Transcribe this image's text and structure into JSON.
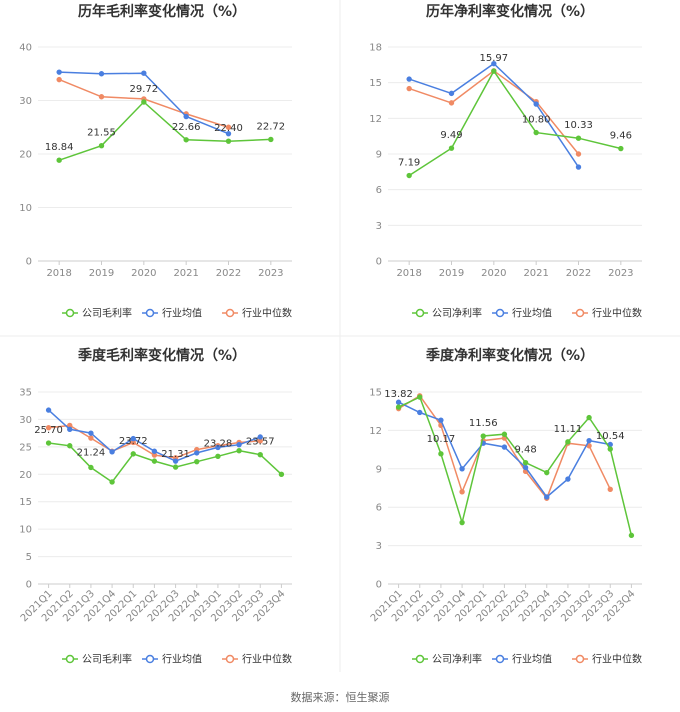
{
  "source_note": "数据来源：恒生聚源",
  "chart_data": [
    {
      "type": "line",
      "title": "历年毛利率变化情况（%）",
      "categories": [
        "2018",
        "2019",
        "2020",
        "2021",
        "2022",
        "2023"
      ],
      "ylim": [
        0,
        40
      ],
      "yticks": [
        0,
        10,
        20,
        30,
        40
      ],
      "series": [
        {
          "name": "公司毛利率",
          "color": "#5ec53a",
          "values": [
            18.84,
            21.55,
            29.72,
            22.66,
            22.4,
            22.72
          ],
          "labels": [
            "18.84",
            "21.55",
            "29.72",
            "22.66",
            "22.40",
            "22.72"
          ]
        },
        {
          "name": "行业均值",
          "color": "#4a7fe0",
          "values": [
            35.3,
            35.0,
            35.1,
            27.0,
            23.8,
            null
          ]
        },
        {
          "name": "行业中位数",
          "color": "#f08a64",
          "values": [
            33.9,
            30.7,
            30.3,
            27.5,
            25.0,
            null
          ]
        }
      ]
    },
    {
      "type": "line",
      "title": "历年净利率变化情况（%）",
      "categories": [
        "2018",
        "2019",
        "2020",
        "2021",
        "2022",
        "2023"
      ],
      "ylim": [
        0,
        18
      ],
      "yticks": [
        0,
        3,
        6,
        9,
        12,
        15,
        18
      ],
      "series": [
        {
          "name": "公司净利率",
          "color": "#5ec53a",
          "values": [
            7.19,
            9.49,
            15.97,
            10.8,
            10.33,
            9.46
          ],
          "labels": [
            "7.19",
            "9.49",
            "15.97",
            "10.80",
            "10.33",
            "9.46"
          ]
        },
        {
          "name": "行业均值",
          "color": "#4a7fe0",
          "values": [
            15.3,
            14.1,
            16.6,
            13.2,
            7.9,
            null
          ]
        },
        {
          "name": "行业中位数",
          "color": "#f08a64",
          "values": [
            14.5,
            13.3,
            16.0,
            13.4,
            9.0,
            null
          ]
        }
      ]
    },
    {
      "type": "line",
      "title": "季度毛利率变化情况（%）",
      "categories": [
        "2021Q1",
        "2021Q2",
        "2021Q3",
        "2021Q4",
        "2022Q1",
        "2022Q2",
        "2022Q3",
        "2022Q4",
        "2023Q1",
        "2023Q2",
        "2023Q3",
        "2023Q4"
      ],
      "ylim": [
        0,
        35
      ],
      "yticks": [
        0,
        5,
        10,
        15,
        20,
        25,
        30,
        35
      ],
      "series": [
        {
          "name": "公司毛利率",
          "color": "#5ec53a",
          "values": [
            25.7,
            25.2,
            21.24,
            18.6,
            23.72,
            22.4,
            21.31,
            22.3,
            23.28,
            24.3,
            23.57,
            20.0
          ],
          "labels": [
            "25.70",
            "",
            "21.24",
            "",
            "23.72",
            "",
            "21.31",
            "",
            "23.28",
            "",
            "23.57",
            ""
          ]
        },
        {
          "name": "行业均值",
          "color": "#4a7fe0",
          "values": [
            31.7,
            28.2,
            27.5,
            24.1,
            26.5,
            24.2,
            22.4,
            23.9,
            24.9,
            25.4,
            26.8,
            null
          ]
        },
        {
          "name": "行业中位数",
          "color": "#f08a64",
          "values": [
            28.5,
            28.9,
            26.6,
            24.2,
            25.8,
            23.5,
            23.0,
            24.5,
            25.2,
            25.8,
            26.1,
            null
          ]
        }
      ]
    },
    {
      "type": "line",
      "title": "季度净利率变化情况（%）",
      "categories": [
        "2021Q1",
        "2021Q2",
        "2021Q3",
        "2021Q4",
        "2022Q1",
        "2022Q2",
        "2022Q3",
        "2022Q4",
        "2023Q1",
        "2023Q2",
        "2023Q3",
        "2023Q4"
      ],
      "ylim": [
        0,
        15
      ],
      "yticks": [
        0,
        3,
        6,
        9,
        12,
        15
      ],
      "series": [
        {
          "name": "公司净利率",
          "color": "#5ec53a",
          "values": [
            13.82,
            14.6,
            10.17,
            4.8,
            11.56,
            11.7,
            9.48,
            8.7,
            11.11,
            13.0,
            10.54,
            3.8
          ],
          "labels": [
            "13.82",
            "",
            "10.17",
            "",
            "11.56",
            "",
            "9.48",
            "",
            "11.11",
            "",
            "10.54",
            ""
          ]
        },
        {
          "name": "行业均值",
          "color": "#4a7fe0",
          "values": [
            14.2,
            13.4,
            12.8,
            9.0,
            11.0,
            10.7,
            9.1,
            6.8,
            8.2,
            11.2,
            10.9,
            null
          ]
        },
        {
          "name": "行业中位数",
          "color": "#f08a64",
          "values": [
            13.7,
            14.7,
            12.4,
            7.2,
            11.2,
            11.4,
            8.8,
            6.7,
            11.0,
            10.8,
            7.4,
            null
          ]
        }
      ]
    }
  ]
}
